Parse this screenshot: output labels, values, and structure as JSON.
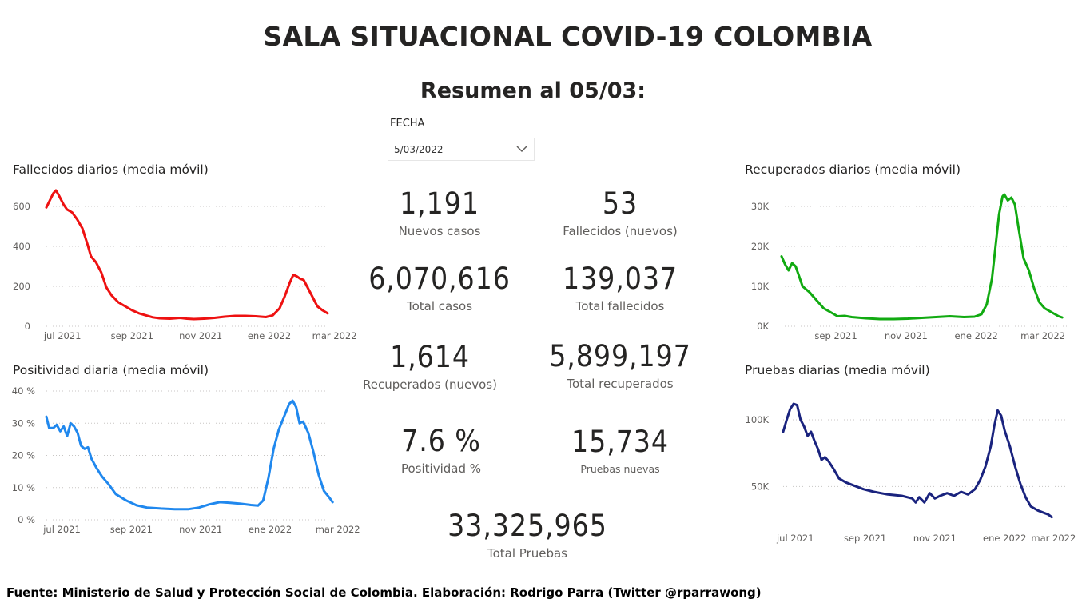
{
  "header": {
    "title": "SALA SITUACIONAL COVID-19 COLOMBIA",
    "subtitle": "Resumen al 05/03:"
  },
  "filter": {
    "label": "FECHA",
    "value": "5/03/2022",
    "icon": "chevron-down-icon"
  },
  "kpis": {
    "nuevos_casos": {
      "value": "1,191",
      "label": "Nuevos casos"
    },
    "fallecidos_nuevos": {
      "value": "53",
      "label": "Fallecidos (nuevos)"
    },
    "total_casos": {
      "value": "6,070,616",
      "label": "Total casos"
    },
    "total_fallecidos": {
      "value": "139,037",
      "label": "Total fallecidos"
    },
    "recuperados_nuevos": {
      "value": "1,614",
      "label": "Recuperados (nuevos)"
    },
    "total_recuperados": {
      "value": "5,899,197",
      "label": "Total recuperados"
    },
    "positividad": {
      "value": "7.6 %",
      "label": "Positividad %"
    },
    "pruebas_nuevas": {
      "value": "15,734",
      "label": "Pruebas nuevas"
    },
    "total_pruebas": {
      "value": "33,325,965",
      "label": "Total Pruebas"
    }
  },
  "footer": {
    "text": "Fuente: Ministerio de Salud y Protección Social de Colombia. Elaboración: Rodrigo Parra (Twitter @rparrawong)"
  },
  "chart_data": [
    {
      "id": "fallecidos",
      "type": "line",
      "title": "Fallecidos diarios (media móvil)",
      "color": "#ee1111",
      "x_range": [
        0,
        8.2
      ],
      "x_ticks": [
        {
          "x": 0.47,
          "label": "jul 2021"
        },
        {
          "x": 2.5,
          "label": "sep 2021"
        },
        {
          "x": 4.5,
          "label": "nov 2021"
        },
        {
          "x": 6.5,
          "label": "ene 2022"
        },
        {
          "x": 8.4,
          "label": "mar 2022"
        }
      ],
      "ylim": [
        0,
        680
      ],
      "y_ticks": [
        {
          "v": 0,
          "label": "0"
        },
        {
          "v": 200,
          "label": "200"
        },
        {
          "v": 400,
          "label": "400"
        },
        {
          "v": 600,
          "label": "600"
        }
      ],
      "grid": true,
      "points": [
        [
          0.0,
          595
        ],
        [
          0.1,
          630
        ],
        [
          0.2,
          665
        ],
        [
          0.28,
          680
        ],
        [
          0.35,
          660
        ],
        [
          0.5,
          610
        ],
        [
          0.6,
          585
        ],
        [
          0.75,
          570
        ],
        [
          0.9,
          535
        ],
        [
          1.05,
          490
        ],
        [
          1.2,
          410
        ],
        [
          1.3,
          350
        ],
        [
          1.45,
          320
        ],
        [
          1.6,
          270
        ],
        [
          1.75,
          195
        ],
        [
          1.9,
          155
        ],
        [
          2.1,
          120
        ],
        [
          2.3,
          100
        ],
        [
          2.5,
          80
        ],
        [
          2.7,
          65
        ],
        [
          2.9,
          55
        ],
        [
          3.1,
          45
        ],
        [
          3.3,
          40
        ],
        [
          3.6,
          38
        ],
        [
          3.9,
          42
        ],
        [
          4.1,
          38
        ],
        [
          4.3,
          36
        ],
        [
          4.6,
          38
        ],
        [
          4.9,
          42
        ],
        [
          5.2,
          48
        ],
        [
          5.5,
          52
        ],
        [
          5.8,
          52
        ],
        [
          6.1,
          50
        ],
        [
          6.4,
          46
        ],
        [
          6.6,
          55
        ],
        [
          6.8,
          90
        ],
        [
          6.95,
          150
        ],
        [
          7.1,
          220
        ],
        [
          7.2,
          258
        ],
        [
          7.3,
          250
        ],
        [
          7.4,
          238
        ],
        [
          7.5,
          232
        ],
        [
          7.6,
          200
        ],
        [
          7.75,
          150
        ],
        [
          7.9,
          100
        ],
        [
          8.05,
          80
        ],
        [
          8.2,
          65
        ]
      ]
    },
    {
      "id": "recuperados",
      "type": "line",
      "title": "Recuperados diarios (media móvil)",
      "color": "#11aa11",
      "x_range": [
        0,
        8.2
      ],
      "x_ticks": [
        {
          "x": 1.55,
          "label": "sep 2021"
        },
        {
          "x": 3.55,
          "label": "nov 2021"
        },
        {
          "x": 5.55,
          "label": "ene 2022"
        },
        {
          "x": 7.45,
          "label": "mar 2022"
        }
      ],
      "ylim": [
        0,
        34000
      ],
      "y_ticks": [
        {
          "v": 0,
          "label": "0K"
        },
        {
          "v": 10000,
          "label": "10K"
        },
        {
          "v": 20000,
          "label": "20K"
        },
        {
          "v": 30000,
          "label": "30K"
        }
      ],
      "grid": true,
      "points": [
        [
          0.0,
          17500
        ],
        [
          0.1,
          15500
        ],
        [
          0.2,
          14000
        ],
        [
          0.3,
          15800
        ],
        [
          0.4,
          15000
        ],
        [
          0.5,
          12500
        ],
        [
          0.6,
          10000
        ],
        [
          0.8,
          8500
        ],
        [
          1.0,
          6500
        ],
        [
          1.2,
          4500
        ],
        [
          1.4,
          3500
        ],
        [
          1.6,
          2500
        ],
        [
          1.8,
          2600
        ],
        [
          2.0,
          2300
        ],
        [
          2.4,
          2000
        ],
        [
          2.8,
          1800
        ],
        [
          3.2,
          1800
        ],
        [
          3.6,
          1900
        ],
        [
          4.0,
          2100
        ],
        [
          4.4,
          2300
        ],
        [
          4.8,
          2500
        ],
        [
          5.2,
          2300
        ],
        [
          5.5,
          2400
        ],
        [
          5.7,
          3000
        ],
        [
          5.85,
          5500
        ],
        [
          6.0,
          12000
        ],
        [
          6.1,
          20000
        ],
        [
          6.2,
          28000
        ],
        [
          6.3,
          32500
        ],
        [
          6.35,
          33000
        ],
        [
          6.45,
          31500
        ],
        [
          6.55,
          32200
        ],
        [
          6.65,
          30500
        ],
        [
          6.75,
          25000
        ],
        [
          6.9,
          17000
        ],
        [
          7.05,
          14000
        ],
        [
          7.2,
          9500
        ],
        [
          7.35,
          6000
        ],
        [
          7.5,
          4500
        ],
        [
          7.7,
          3500
        ],
        [
          7.9,
          2500
        ],
        [
          8.0,
          2200
        ]
      ]
    },
    {
      "id": "positividad",
      "type": "line",
      "title": "Positividad diaria (media móvil)",
      "color": "#2088ee",
      "x_range": [
        0,
        8.2
      ],
      "x_ticks": [
        {
          "x": 0.45,
          "label": "jul 2021"
        },
        {
          "x": 2.45,
          "label": "sep 2021"
        },
        {
          "x": 4.45,
          "label": "nov 2021"
        },
        {
          "x": 6.45,
          "label": "ene 2022"
        },
        {
          "x": 8.4,
          "label": "mar 2022"
        }
      ],
      "ylim": [
        0,
        40
      ],
      "y_ticks": [
        {
          "v": 0,
          "label": "0 %"
        },
        {
          "v": 10,
          "label": "10 %"
        },
        {
          "v": 20,
          "label": "20 %"
        },
        {
          "v": 30,
          "label": "30 %"
        },
        {
          "v": 40,
          "label": "40 %"
        }
      ],
      "grid": true,
      "points": [
        [
          0.0,
          32
        ],
        [
          0.08,
          28.5
        ],
        [
          0.2,
          28.5
        ],
        [
          0.3,
          29.5
        ],
        [
          0.4,
          27.5
        ],
        [
          0.5,
          29
        ],
        [
          0.6,
          26
        ],
        [
          0.7,
          30
        ],
        [
          0.8,
          29
        ],
        [
          0.9,
          27
        ],
        [
          1.0,
          23
        ],
        [
          1.1,
          22
        ],
        [
          1.2,
          22.5
        ],
        [
          1.3,
          19
        ],
        [
          1.45,
          16
        ],
        [
          1.6,
          13.5
        ],
        [
          1.8,
          11
        ],
        [
          2.0,
          8
        ],
        [
          2.3,
          6
        ],
        [
          2.6,
          4.5
        ],
        [
          2.9,
          3.8
        ],
        [
          3.3,
          3.5
        ],
        [
          3.7,
          3.3
        ],
        [
          4.1,
          3.3
        ],
        [
          4.4,
          3.8
        ],
        [
          4.7,
          4.8
        ],
        [
          5.0,
          5.5
        ],
        [
          5.3,
          5.3
        ],
        [
          5.6,
          5
        ],
        [
          5.9,
          4.6
        ],
        [
          6.1,
          4.4
        ],
        [
          6.25,
          6
        ],
        [
          6.4,
          13
        ],
        [
          6.55,
          22
        ],
        [
          6.7,
          28
        ],
        [
          6.85,
          32
        ],
        [
          7.0,
          36
        ],
        [
          7.1,
          37
        ],
        [
          7.2,
          35
        ],
        [
          7.3,
          30
        ],
        [
          7.4,
          30.5
        ],
        [
          7.55,
          27
        ],
        [
          7.7,
          21
        ],
        [
          7.85,
          14
        ],
        [
          8.0,
          9
        ],
        [
          8.15,
          7
        ],
        [
          8.25,
          5.5
        ]
      ]
    },
    {
      "id": "pruebas",
      "type": "line",
      "title": "Pruebas diarias (media móvil)",
      "color": "#1a237e",
      "x_range": [
        0,
        8.2
      ],
      "x_ticks": [
        {
          "x": 0.35,
          "label": "jul 2021"
        },
        {
          "x": 2.35,
          "label": "sep 2021"
        },
        {
          "x": 4.35,
          "label": "nov 2021"
        },
        {
          "x": 6.35,
          "label": "ene 2022"
        },
        {
          "x": 7.75,
          "label": "mar 2022"
        }
      ],
      "ylim": [
        22000,
        115000
      ],
      "y_ticks": [
        {
          "v": 50000,
          "label": "50K"
        },
        {
          "v": 100000,
          "label": "100K"
        }
      ],
      "grid": true,
      "points": [
        [
          0.0,
          91000
        ],
        [
          0.1,
          100000
        ],
        [
          0.2,
          108000
        ],
        [
          0.3,
          112000
        ],
        [
          0.4,
          111000
        ],
        [
          0.5,
          100000
        ],
        [
          0.6,
          95000
        ],
        [
          0.7,
          88000
        ],
        [
          0.8,
          91000
        ],
        [
          0.9,
          84000
        ],
        [
          1.0,
          78000
        ],
        [
          1.1,
          70000
        ],
        [
          1.2,
          72000
        ],
        [
          1.3,
          69000
        ],
        [
          1.45,
          63000
        ],
        [
          1.6,
          56000
        ],
        [
          1.8,
          53000
        ],
        [
          2.0,
          51000
        ],
        [
          2.3,
          48000
        ],
        [
          2.6,
          46000
        ],
        [
          3.0,
          44000
        ],
        [
          3.4,
          43000
        ],
        [
          3.7,
          41000
        ],
        [
          3.8,
          38000
        ],
        [
          3.9,
          42000
        ],
        [
          4.05,
          38000
        ],
        [
          4.2,
          45000
        ],
        [
          4.35,
          41000
        ],
        [
          4.5,
          43000
        ],
        [
          4.7,
          45000
        ],
        [
          4.9,
          43000
        ],
        [
          5.1,
          46000
        ],
        [
          5.3,
          44000
        ],
        [
          5.5,
          48000
        ],
        [
          5.65,
          55000
        ],
        [
          5.8,
          65000
        ],
        [
          5.95,
          80000
        ],
        [
          6.05,
          95000
        ],
        [
          6.15,
          107000
        ],
        [
          6.25,
          103000
        ],
        [
          6.35,
          92000
        ],
        [
          6.5,
          80000
        ],
        [
          6.65,
          65000
        ],
        [
          6.8,
          52000
        ],
        [
          6.95,
          42000
        ],
        [
          7.1,
          35000
        ],
        [
          7.3,
          32000
        ],
        [
          7.5,
          30000
        ],
        [
          7.6,
          29000
        ],
        [
          7.7,
          27000
        ]
      ]
    }
  ]
}
